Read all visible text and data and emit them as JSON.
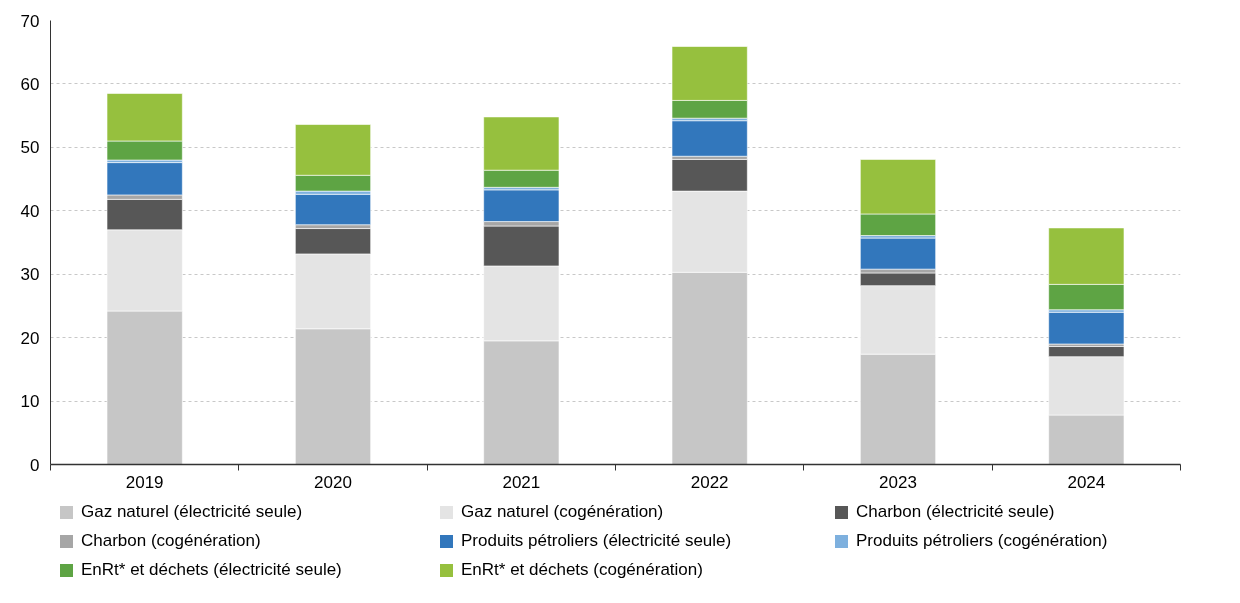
{
  "chart_data": {
    "type": "bar",
    "stacked": true,
    "categories": [
      "2019",
      "2020",
      "2021",
      "2022",
      "2023",
      "2024"
    ],
    "ylim": [
      0,
      70
    ],
    "yticks": [
      0,
      10,
      20,
      30,
      40,
      50,
      60,
      70
    ],
    "grid": "y",
    "legend": "bottom",
    "series": [
      {
        "name": "Gaz naturel (électricité seule)",
        "color": "#c6c6c6",
        "values": [
          24.2,
          21.4,
          19.5,
          30.3,
          17.4,
          7.8
        ]
      },
      {
        "name": "Gaz naturel (cogénération)",
        "color": "#e4e4e4",
        "values": [
          12.8,
          11.8,
          11.8,
          12.8,
          10.8,
          9.2
        ]
      },
      {
        "name": "Charbon (électricité seule)",
        "color": "#575757",
        "values": [
          4.8,
          4.0,
          6.3,
          5.0,
          2.0,
          1.6
        ]
      },
      {
        "name": "Charbon (cogénération)",
        "color": "#a6a6a6",
        "values": [
          0.7,
          0.6,
          0.7,
          0.5,
          0.6,
          0.4
        ]
      },
      {
        "name": "Produits pétroliers (électricité seule)",
        "color": "#3277bc",
        "values": [
          5.1,
          4.8,
          5.0,
          5.6,
          4.9,
          5.0
        ]
      },
      {
        "name": "Produits pétroliers (cogénération)",
        "color": "#7eb0de",
        "values": [
          0.4,
          0.5,
          0.4,
          0.4,
          0.4,
          0.4
        ]
      },
      {
        "name": "EnRt* et déchets (électricité seule)",
        "color": "#5ea444",
        "values": [
          3.0,
          2.5,
          2.7,
          2.8,
          3.4,
          4.0
        ]
      },
      {
        "name": "EnRt* et déchets (cogénération)",
        "color": "#96c03e",
        "values": [
          7.5,
          8.0,
          8.4,
          8.5,
          8.6,
          8.9
        ]
      }
    ]
  }
}
